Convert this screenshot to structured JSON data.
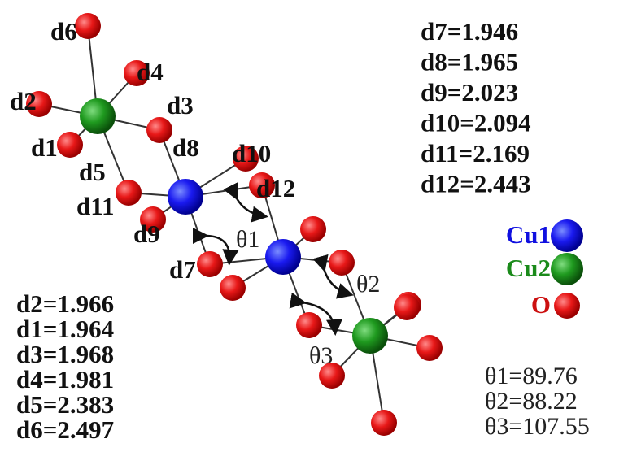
{
  "bond_labels": [
    "d1",
    "d2",
    "d3",
    "d4",
    "d5",
    "d6",
    "d7",
    "d8",
    "d9",
    "d10",
    "d11",
    "d12"
  ],
  "angle_labels": [
    "θ1",
    "θ2",
    "θ3"
  ],
  "distances_right": [
    "d7=1.946",
    "d8=1.965",
    "d9=2.023",
    "d10=2.094",
    "d11=2.169",
    "d12=2.443"
  ],
  "distances_left": [
    "d2=1.966",
    "d1=1.964",
    "d3=1.968",
    "d4=1.981",
    "d5=2.383",
    "d6=2.497"
  ],
  "angles": [
    "θ1=89.76",
    "θ2=88.22",
    "θ3=107.55"
  ],
  "legend": [
    "Cu1",
    "Cu2",
    "O"
  ]
}
